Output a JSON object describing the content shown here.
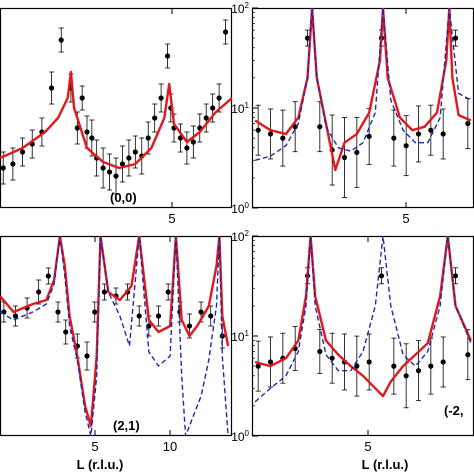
{
  "chart_data": [
    {
      "type": "scatter",
      "panel_label": "(0,0)",
      "xlabel": "",
      "ylabel": "",
      "x_ticks": [
        "5"
      ],
      "y_ticks": [],
      "xlim": [
        0.8,
        8.0
      ],
      "ylim": [
        0,
        1
      ],
      "series": [
        {
          "kind": "points",
          "x": [
            0.9,
            1.2,
            1.5,
            1.8,
            2.1,
            2.4,
            2.7,
            3.0,
            3.2,
            3.35,
            3.5,
            3.65,
            3.8,
            4.0,
            4.2,
            4.4,
            4.6,
            4.8,
            5.0,
            5.2,
            5.4,
            5.6,
            5.8,
            6.0,
            6.1,
            6.2,
            6.4,
            6.6,
            6.8,
            7.0,
            7.2,
            7.4,
            7.6,
            7.8
          ],
          "y": [
            0.2,
            0.22,
            0.28,
            0.32,
            0.38,
            0.6,
            0.84,
            0.6,
            0.4,
            0.55,
            0.38,
            0.35,
            0.25,
            0.2,
            0.18,
            0.16,
            0.22,
            0.25,
            0.28,
            0.26,
            0.35,
            0.45,
            0.55,
            0.76,
            0.5,
            0.4,
            0.35,
            0.3,
            0.33,
            0.4,
            0.45,
            0.5,
            0.55,
            0.88
          ],
          "err": [
            0.08,
            0.08,
            0.07,
            0.07,
            0.07,
            0.08,
            0.06,
            0.07,
            0.08,
            0.06,
            0.08,
            0.09,
            0.09,
            0.1,
            0.09,
            0.09,
            0.09,
            0.09,
            0.08,
            0.09,
            0.08,
            0.07,
            0.07,
            0.06,
            0.07,
            0.07,
            0.07,
            0.08,
            0.08,
            0.07,
            0.07,
            0.07,
            0.07,
            0.06
          ]
        },
        {
          "kind": "fit-red",
          "color": "#e0191e",
          "x": [
            0.8,
            1.5,
            2.2,
            2.6,
            2.9,
            3.0,
            3.1,
            3.5,
            4.0,
            4.5,
            5.0,
            5.5,
            5.9,
            6.05,
            6.2,
            6.6,
            7.0,
            7.5,
            8.0
          ],
          "y": [
            0.25,
            0.3,
            0.38,
            0.45,
            0.55,
            0.68,
            0.5,
            0.3,
            0.23,
            0.2,
            0.22,
            0.3,
            0.45,
            0.62,
            0.42,
            0.33,
            0.38,
            0.48,
            0.55
          ]
        }
      ]
    },
    {
      "type": "scatter",
      "panel_label": "",
      "xlabel": "",
      "ylabel": "",
      "x_ticks": [
        "5"
      ],
      "y_ticks": [
        "10⁰",
        "10¹",
        "10²"
      ],
      "yscale": "log",
      "xlim": [
        0.8,
        8.0
      ],
      "ylim": [
        1,
        100
      ],
      "series": [
        {
          "kind": "points",
          "x": [
            1.0,
            1.4,
            1.8,
            2.2,
            2.6,
            3.0,
            3.4,
            3.8,
            4.2,
            4.6,
            5.0,
            5.4,
            5.8,
            6.2,
            6.6,
            7.0,
            7.4,
            7.8
          ],
          "y": [
            6.0,
            5.5,
            5.0,
            6.5,
            50.0,
            6.5,
            3.8,
            3.2,
            3.6,
            5.2,
            50.0,
            5.0,
            4.2,
            5.5,
            6.0,
            5.5,
            50.0,
            7.0
          ],
          "err": [
            0.25,
            0.25,
            0.28,
            0.25,
            0.08,
            0.25,
            0.35,
            0.4,
            0.35,
            0.28,
            0.08,
            0.28,
            0.3,
            0.28,
            0.25,
            0.25,
            0.08,
            0.25
          ]
        },
        {
          "kind": "fit-red",
          "color": "#e0191e",
          "x": [
            0.9,
            1.4,
            1.9,
            2.3,
            2.6,
            2.75,
            2.9,
            3.2,
            3.5,
            3.8,
            4.2,
            4.6,
            4.95,
            5.05,
            5.2,
            5.6,
            6.0,
            6.4,
            6.8,
            7.1,
            7.2,
            7.3,
            7.5,
            7.9
          ],
          "y": [
            7.5,
            6.0,
            5.5,
            8.0,
            20.0,
            100,
            20.0,
            7.0,
            2.4,
            4.5,
            5.5,
            9.0,
            30.0,
            100,
            20.0,
            8.0,
            6.0,
            6.5,
            9.0,
            30.0,
            100,
            20.0,
            8.5,
            7.5
          ]
        },
        {
          "kind": "fit-blue-dashed",
          "color": "#1f2aa8",
          "x": [
            0.9,
            1.4,
            1.9,
            2.3,
            2.6,
            2.75,
            2.9,
            3.2,
            3.6,
            4.0,
            4.4,
            4.8,
            5.05,
            5.3,
            5.7,
            6.1,
            6.5,
            6.9,
            7.2,
            7.5,
            7.9
          ],
          "y": [
            3.0,
            3.3,
            4.2,
            7.0,
            20.0,
            100,
            20.0,
            6.5,
            4.0,
            3.7,
            4.5,
            9.0,
            100,
            12.0,
            6.0,
            4.5,
            4.5,
            8.0,
            100,
            14.0,
            12.0
          ]
        }
      ]
    },
    {
      "type": "scatter",
      "panel_label": "(2,1)",
      "xlabel": "L (r.l.u.)",
      "ylabel": "",
      "x_ticks": [
        "5",
        "10"
      ],
      "y_ticks": [],
      "xlim": [
        0.8,
        12.8
      ],
      "ylim": [
        0,
        1
      ],
      "series": [
        {
          "kind": "points",
          "x": [
            1.0,
            1.6,
            2.2,
            2.8,
            3.3,
            3.8,
            4.2,
            4.8,
            5.3,
            5.7,
            6.2,
            6.8,
            7.4,
            8.0,
            8.5,
            9.0,
            9.5,
            10.1,
            10.6,
            11.2,
            11.7,
            12.3
          ],
          "y": [
            0.62,
            0.6,
            0.64,
            0.72,
            0.8,
            0.62,
            0.52,
            0.45,
            0.4,
            0.62,
            0.72,
            0.7,
            0.72,
            0.6,
            0.55,
            0.6,
            0.72,
            0.62,
            0.55,
            0.62,
            0.6,
            0.5
          ],
          "err": [
            0.05,
            0.05,
            0.05,
            0.06,
            0.04,
            0.05,
            0.06,
            0.06,
            0.07,
            0.05,
            0.04,
            0.04,
            0.04,
            0.05,
            0.05,
            0.05,
            0.04,
            0.05,
            0.06,
            0.05,
            0.05,
            0.06
          ]
        },
        {
          "kind": "fit-red",
          "color": "#e0191e",
          "x": [
            0.8,
            1.5,
            2.5,
            3.2,
            3.6,
            3.9,
            4.15,
            4.4,
            4.8,
            5.2,
            5.5,
            5.8,
            6.0,
            6.4,
            7.0,
            7.6,
            8.0,
            8.5,
            9.0,
            9.6,
            9.9,
            10.2,
            10.6,
            11.0,
            11.6,
            12.0,
            12.15,
            12.3,
            12.6
          ],
          "y": [
            0.7,
            0.62,
            0.66,
            0.68,
            0.78,
            1.0,
            0.85,
            0.6,
            0.4,
            0.15,
            0.05,
            0.4,
            1.0,
            0.72,
            0.68,
            0.75,
            1.0,
            0.58,
            0.52,
            0.55,
            1.0,
            0.58,
            0.5,
            0.55,
            0.65,
            0.85,
            1.0,
            0.6,
            0.45
          ]
        },
        {
          "kind": "fit-blue-dashed",
          "color": "#1f2aa8",
          "x": [
            0.8,
            1.5,
            2.5,
            3.2,
            3.6,
            3.9,
            4.15,
            4.4,
            4.8,
            5.2,
            5.5,
            5.8,
            6.0,
            6.4,
            7.0,
            7.5,
            8.0,
            8.5,
            9.0,
            9.6,
            9.9,
            10.2,
            10.4,
            10.8,
            11.2,
            11.6,
            12.0,
            12.15,
            12.3,
            12.6
          ],
          "y": [
            0.62,
            0.58,
            0.62,
            0.66,
            0.76,
            1.0,
            0.8,
            0.55,
            0.38,
            0.12,
            0.0,
            0.3,
            1.0,
            0.72,
            0.6,
            0.45,
            1.0,
            0.42,
            0.35,
            0.4,
            1.0,
            0.3,
            0.0,
            0.1,
            0.2,
            0.38,
            0.65,
            1.0,
            0.4,
            0.0
          ]
        }
      ]
    },
    {
      "type": "scatter",
      "panel_label": "(-2,",
      "xlabel": "L (r.l.u.)",
      "ylabel": "",
      "x_ticks": [
        "5"
      ],
      "y_ticks": [
        "10⁰",
        "10¹",
        "10²"
      ],
      "yscale": "log",
      "xlim": [
        0.8,
        8.0
      ],
      "ylim": [
        1,
        100
      ],
      "series": [
        {
          "kind": "points",
          "x": [
            1.0,
            1.4,
            1.8,
            2.2,
            2.6,
            3.0,
            3.4,
            3.8,
            4.2,
            4.6,
            5.0,
            5.4,
            5.8,
            6.2,
            6.6,
            7.0,
            7.4,
            7.8
          ],
          "y": [
            5.0,
            5.5,
            6.0,
            7.5,
            40.0,
            7.0,
            6.0,
            5.5,
            5.0,
            5.5,
            40.0,
            5.0,
            4.0,
            4.5,
            5.0,
            5.5,
            40.0,
            6.5
          ],
          "err": [
            0.25,
            0.25,
            0.25,
            0.22,
            0.08,
            0.22,
            0.25,
            0.28,
            0.3,
            0.28,
            0.08,
            0.28,
            0.32,
            0.3,
            0.28,
            0.25,
            0.08,
            0.25
          ]
        },
        {
          "kind": "fit-red",
          "color": "#e0191e",
          "x": [
            0.9,
            1.4,
            1.9,
            2.3,
            2.55,
            2.7,
            2.85,
            3.2,
            3.6,
            4.0,
            4.4,
            4.8,
            5.05,
            5.3,
            5.7,
            6.1,
            6.5,
            6.9,
            7.15,
            7.4,
            7.9
          ],
          "y": [
            5.5,
            5.0,
            6.0,
            9.0,
            25.0,
            100,
            25.0,
            9.0,
            6.5,
            5.0,
            4.0,
            3.0,
            2.5,
            3.5,
            5.0,
            6.5,
            8.5,
            25.0,
            100,
            20.0,
            9.0
          ]
        },
        {
          "kind": "fit-blue-dashed",
          "color": "#1f2aa8",
          "x": [
            0.9,
            1.4,
            1.9,
            2.3,
            2.55,
            2.7,
            2.85,
            3.2,
            3.6,
            4.0,
            4.4,
            4.8,
            5.05,
            5.3,
            5.7,
            6.1,
            6.5,
            6.9,
            7.15,
            7.4,
            7.9
          ],
          "y": [
            2.2,
            3.0,
            4.0,
            7.0,
            20.0,
            100,
            20.0,
            6.5,
            4.5,
            4.5,
            7.0,
            20.0,
            100,
            20.0,
            6.5,
            5.0,
            7.0,
            20.0,
            100,
            20.0,
            8.5
          ]
        }
      ]
    }
  ]
}
